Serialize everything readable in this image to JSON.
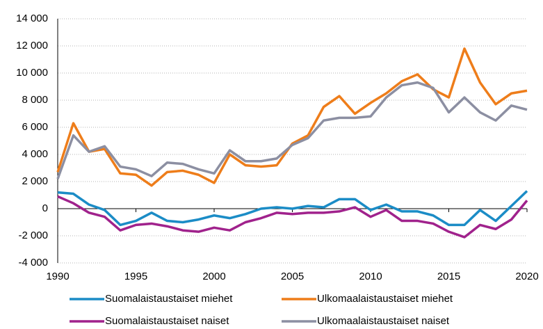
{
  "chart_data": {
    "type": "line",
    "x": [
      1990,
      1991,
      1992,
      1993,
      1994,
      1995,
      1996,
      1997,
      1998,
      1999,
      2000,
      2001,
      2002,
      2003,
      2004,
      2005,
      2006,
      2007,
      2008,
      2009,
      2010,
      2011,
      2012,
      2013,
      2014,
      2015,
      2016,
      2017,
      2018,
      2019,
      2020
    ],
    "series": [
      {
        "name": "Suomalaistaustaiset miehet",
        "color": "#1b8cc6",
        "values": [
          1200,
          1100,
          300,
          -100,
          -1200,
          -900,
          -300,
          -900,
          -1000,
          -800,
          -500,
          -700,
          -400,
          0,
          100,
          0,
          200,
          100,
          700,
          700,
          -100,
          300,
          -200,
          -200,
          -500,
          -1200,
          -1200,
          -100,
          -900,
          200,
          1300
        ]
      },
      {
        "name": "Ulkomaalaistaustaiset miehet",
        "color": "#ee7d1a",
        "values": [
          2700,
          6300,
          4200,
          4400,
          2600,
          2500,
          1700,
          2700,
          2800,
          2500,
          1900,
          4000,
          3200,
          3100,
          3200,
          4800,
          5400,
          7500,
          8300,
          7000,
          7800,
          8500,
          9400,
          9900,
          8800,
          8200,
          11800,
          9300,
          7700,
          8500,
          8700
        ]
      },
      {
        "name": "Suomalaistaustaiset naiset",
        "color": "#a0228c",
        "values": [
          900,
          400,
          -300,
          -600,
          -1600,
          -1200,
          -1100,
          -1300,
          -1600,
          -1700,
          -1400,
          -1600,
          -1000,
          -700,
          -300,
          -400,
          -300,
          -300,
          -200,
          100,
          -600,
          -100,
          -900,
          -900,
          -1100,
          -1700,
          -2100,
          -1200,
          -1500,
          -800,
          600
        ]
      },
      {
        "name": "Ulkomaalaistaustaiset naiset",
        "color": "#8c8fa2",
        "values": [
          2200,
          5400,
          4200,
          4600,
          3100,
          2900,
          2400,
          3400,
          3300,
          2900,
          2600,
          4300,
          3500,
          3500,
          3700,
          4700,
          5200,
          6500,
          6700,
          6700,
          6800,
          8200,
          9100,
          9300,
          8900,
          7100,
          8200,
          7100,
          6500,
          7600,
          7300
        ]
      }
    ],
    "xlim": [
      1990,
      2020
    ],
    "xticks": [
      1990,
      1995,
      2000,
      2005,
      2010,
      2015,
      2020
    ],
    "ylim": [
      -4000,
      14000
    ],
    "yticks": [
      {
        "value": -4000,
        "label": "-4 000"
      },
      {
        "value": -2000,
        "label": "-2 000"
      },
      0,
      {
        "value": 2000,
        "label": "2 000"
      },
      {
        "value": 4000,
        "label": "4 000"
      },
      {
        "value": 6000,
        "label": "6 000"
      },
      {
        "value": 8000,
        "label": "8 000"
      },
      {
        "value": 10000,
        "label": "10 000"
      },
      {
        "value": 12000,
        "label": "12 000"
      },
      {
        "value": 14000,
        "label": "14 000"
      }
    ],
    "grid": true
  }
}
